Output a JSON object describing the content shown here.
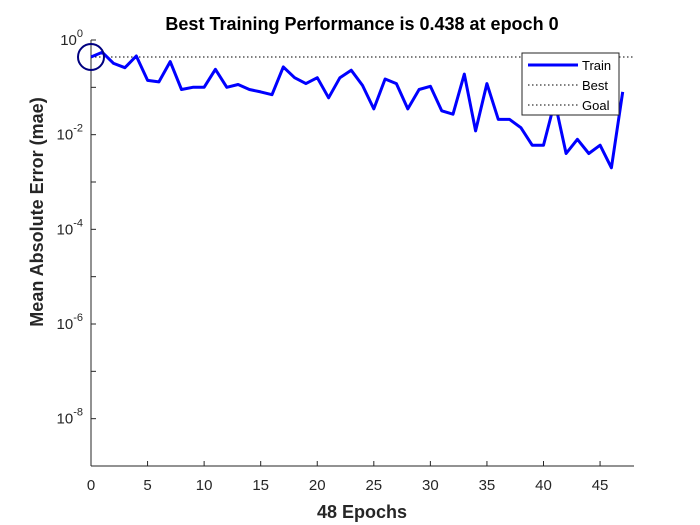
{
  "chart_data": {
    "type": "line",
    "title": "Best Training Performance is 0.438 at epoch 0",
    "xlabel": "48 Epochs",
    "ylabel": "Mean Absolute Error  (mae)",
    "yscale": "log",
    "xlim": [
      0,
      48
    ],
    "ylim": [
      1e-09,
      1
    ],
    "x_ticks": [
      0,
      5,
      10,
      15,
      20,
      25,
      30,
      35,
      40,
      45
    ],
    "y_ticks": [
      {
        "value": 1,
        "base": "10",
        "exp": "0"
      },
      {
        "value": 0.01,
        "base": "10",
        "exp": "-2"
      },
      {
        "value": 0.0001,
        "base": "10",
        "exp": "-4"
      },
      {
        "value": 1e-06,
        "base": "10",
        "exp": "-6"
      },
      {
        "value": 1e-08,
        "base": "10",
        "exp": "-8"
      }
    ],
    "grid": false,
    "legend_position": "top-right",
    "series": [
      {
        "name": "Train",
        "color": "#0000ff",
        "style": "solid",
        "x": [
          0,
          1,
          2,
          3,
          4,
          5,
          6,
          7,
          8,
          9,
          10,
          11,
          12,
          13,
          14,
          15,
          16,
          17,
          18,
          19,
          20,
          21,
          22,
          23,
          24,
          25,
          26,
          27,
          28,
          29,
          30,
          31,
          32,
          33,
          34,
          35,
          36,
          37,
          38,
          39,
          40,
          41,
          42,
          43,
          44,
          45,
          46,
          47
        ],
        "y": [
          0.438,
          0.55,
          0.32,
          0.26,
          0.46,
          0.14,
          0.13,
          0.35,
          0.09,
          0.1,
          0.1,
          0.24,
          0.1,
          0.115,
          0.09,
          0.08,
          0.07,
          0.27,
          0.16,
          0.12,
          0.16,
          0.06,
          0.16,
          0.23,
          0.11,
          0.035,
          0.15,
          0.12,
          0.035,
          0.09,
          0.105,
          0.032,
          0.027,
          0.19,
          0.012,
          0.12,
          0.021,
          0.021,
          0.014,
          0.006,
          0.006,
          0.05,
          0.004,
          0.008,
          0.004,
          0.006,
          0.002,
          0.08
        ]
      },
      {
        "name": "Best",
        "color": "#000000",
        "style": "dotted",
        "value": 0.438
      },
      {
        "name": "Goal",
        "color": "#000000",
        "style": "dotted",
        "value": 0
      }
    ],
    "best_marker": {
      "x": 0,
      "y": 0.438,
      "color": "#000080"
    }
  }
}
